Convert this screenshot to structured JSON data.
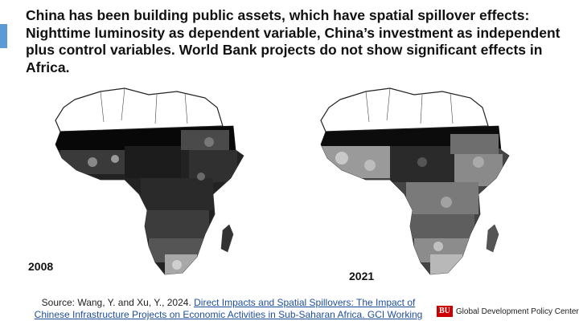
{
  "slide": {
    "title": "China has been building public assets, which have spatial spillover effects: Nighttime luminosity as dependent variable, China’s investment as independent plus control variables. World Bank projects do not show significant effects in Africa."
  },
  "maps": [
    {
      "year": "2008",
      "shading": "mostly dark"
    },
    {
      "year": "2021",
      "shading": "brighter, more grey"
    }
  ],
  "source": {
    "prefix": "Source: Wang, Y. and Xu, Y., 2024.",
    "link_text": "Direct Impacts and Spatial Spillovers: The Impact of Chinese Infrastructure Projects on Economic Activities in Sub-Saharan Africa. GCI Working"
  },
  "branding": {
    "logo_mark": "BU",
    "center_name": "Global Development Policy Center"
  },
  "colors": {
    "accent": "#5b9bd5",
    "brand_red": "#cc0000",
    "link": "#1f4e9a"
  }
}
